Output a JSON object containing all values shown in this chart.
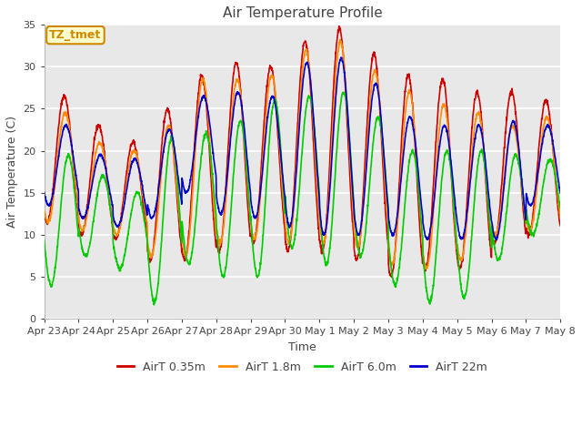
{
  "title": "Air Temperature Profile",
  "xlabel": "Time",
  "ylabel": "Air Temperature (C)",
  "ylim": [
    0,
    35
  ],
  "x_tick_labels": [
    "Apr 23",
    "Apr 24",
    "Apr 25",
    "Apr 26",
    "Apr 27",
    "Apr 28",
    "Apr 29",
    "Apr 30",
    "May 1",
    "May 2",
    "May 3",
    "May 4",
    "May 5",
    "May 6",
    "May 7",
    "May 8"
  ],
  "colors": {
    "red": "#CC0000",
    "orange": "#FF8C00",
    "green": "#00CC00",
    "blue": "#0000CC"
  },
  "legend_labels": [
    "AirT 0.35m",
    "AirT 1.8m",
    "AirT 6.0m",
    "AirT 22m"
  ],
  "annotation_text": "TZ_tmet",
  "annotation_facecolor": "#FFFFCC",
  "annotation_edgecolor": "#CC8800",
  "fig_facecolor": "#FFFFFF",
  "plot_facecolor": "#E8E8E8",
  "grid_color": "#FFFFFF",
  "title_fontsize": 11,
  "axis_fontsize": 9,
  "tick_fontsize": 8,
  "red_max": [
    26.5,
    23.0,
    21.0,
    25.0,
    29.0,
    30.5,
    30.0,
    33.0,
    34.5,
    31.5,
    29.0,
    28.5,
    27.0,
    27.0,
    26.0
  ],
  "red_min": [
    11.5,
    10.0,
    9.5,
    7.0,
    7.0,
    8.0,
    9.0,
    8.0,
    8.0,
    7.0,
    5.0,
    6.0,
    6.0,
    9.0,
    10.0
  ],
  "orange_max": [
    24.5,
    21.0,
    20.0,
    23.0,
    28.5,
    28.5,
    29.0,
    32.0,
    33.0,
    29.5,
    27.0,
    25.5,
    24.5,
    23.0,
    24.0
  ],
  "orange_min": [
    11.5,
    10.5,
    10.0,
    7.5,
    7.5,
    9.0,
    9.5,
    9.0,
    9.0,
    8.5,
    6.5,
    6.0,
    7.0,
    10.0,
    10.5
  ],
  "green_max": [
    19.5,
    17.0,
    15.0,
    21.5,
    22.0,
    23.5,
    26.0,
    26.5,
    27.0,
    24.0,
    20.0,
    20.0,
    20.0,
    19.5,
    19.0
  ],
  "green_min": [
    4.0,
    7.5,
    6.0,
    2.0,
    6.5,
    5.0,
    5.0,
    8.5,
    6.5,
    7.5,
    4.0,
    2.0,
    2.5,
    7.0,
    10.0
  ],
  "blue_max": [
    23.0,
    19.5,
    19.0,
    22.5,
    26.5,
    27.0,
    26.5,
    30.5,
    31.0,
    28.0,
    24.0,
    23.0,
    23.0,
    23.5,
    23.0
  ],
  "blue_min": [
    13.5,
    12.0,
    11.0,
    12.0,
    15.0,
    12.5,
    12.0,
    11.0,
    10.0,
    10.0,
    10.0,
    9.5,
    9.5,
    9.5,
    13.5
  ]
}
